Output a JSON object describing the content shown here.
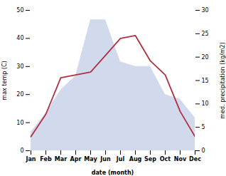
{
  "chart_data": {
    "type": "line",
    "categories": [
      "Jan",
      "Feb",
      "Mar",
      "Apr",
      "May",
      "Jun",
      "Jul",
      "Aug",
      "Sep",
      "Oct",
      "Nov",
      "Dec"
    ],
    "xlabel": "date (month)",
    "ylabel": "max temp (C)",
    "y2label": "med. precipitation (kg/m2)",
    "series": [
      {
        "type": "area",
        "axis": "y2",
        "color": "#aabbdd",
        "values": [
          4,
          8,
          13,
          16,
          28,
          28,
          19,
          18,
          18,
          12,
          11,
          7
        ]
      },
      {
        "type": "line",
        "color": "#b03040",
        "values": [
          5,
          13,
          26,
          27,
          28,
          34,
          40,
          41,
          32,
          27,
          14,
          5
        ]
      }
    ],
    "ylim": [
      0,
      50
    ],
    "yticks": [
      0,
      10,
      20,
      30,
      40,
      50
    ],
    "y2lim": [
      0,
      30
    ],
    "y2ticks": [
      0,
      5,
      10,
      15,
      20,
      25,
      30
    ],
    "grid": false
  }
}
